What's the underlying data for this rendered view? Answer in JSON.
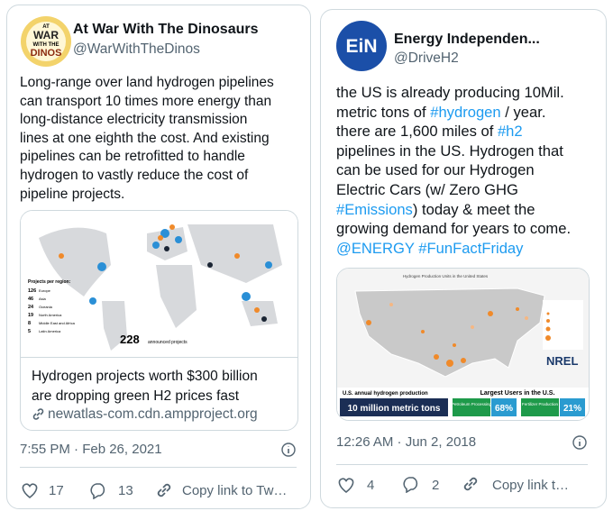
{
  "tweets": [
    {
      "avatar_text": [
        "AT",
        "WAR",
        "WITH THE",
        "DINOS"
      ],
      "name": "At War With The Dinosaurs",
      "handle": "@WarWithTheDinos",
      "body_lines": [
        [
          {
            "text": "Long-range over land hydrogen pipelines"
          }
        ],
        [
          {
            "text": "can transport 10 times more energy than"
          }
        ],
        [
          {
            "text": "long-distance electricity transmission"
          }
        ],
        [
          {
            "text": "lines at one eighth the cost. And existing"
          }
        ],
        [
          {
            "text": "pipelines can be retrofitted to handle"
          }
        ],
        [
          {
            "text": "hydrogen to vastly reduce the cost of"
          }
        ],
        [
          {
            "text": "pipeline projects."
          }
        ]
      ],
      "image": {
        "legend_title": "Projects per region:",
        "legend": [
          {
            "count": "126",
            "region": "Europe"
          },
          {
            "count": "46",
            "region": "Asia"
          },
          {
            "count": "24",
            "region": "Oceania"
          },
          {
            "count": "19",
            "region": "North America"
          },
          {
            "count": "8",
            "region": "Middle East and Africa"
          },
          {
            "count": "5",
            "region": "Latin America"
          }
        ],
        "total": "228",
        "total_label": "announced projects"
      },
      "card_title": [
        "Hydrogen projects worth $300 billion",
        "are dropping green H2 prices fast"
      ],
      "card_link": "newatlas-com.cdn.ampproject.org",
      "timestamp": "7:55 PM · Feb 26, 2021",
      "likes": "17",
      "replies": "13",
      "share": "Copy link to Tw…"
    },
    {
      "avatar_text": [
        "EiN"
      ],
      "name": "Energy Independen...",
      "handle": "@DriveH2",
      "body_lines": [
        [
          {
            "text": "the US is already producing 10Mil."
          }
        ],
        [
          {
            "text": "metric tons of "
          },
          {
            "text": "#hydrogen",
            "link": true
          },
          {
            "text": " / year."
          }
        ],
        [
          {
            "text": "there are 1,600 miles of "
          },
          {
            "text": "#h2",
            "link": true
          }
        ],
        [
          {
            "text": "pipelines in the US. Hydrogen that"
          }
        ],
        [
          {
            "text": "can be used for our Hydrogen"
          }
        ],
        [
          {
            "text": "Electric Cars (w/ Zero GHG"
          }
        ],
        [
          {
            "text": "#Emissions",
            "link": true
          },
          {
            "text": ") today & meet the"
          }
        ],
        [
          {
            "text": "growing demand for years to come."
          }
        ],
        [
          {
            "text": "@ENERGY",
            "link": true
          },
          {
            "text": " "
          },
          {
            "text": "#FunFactFriday",
            "link": true
          }
        ]
      ],
      "image": {
        "map_title": "Hydrogen Production Units in the United States",
        "brand": "NREL",
        "production_label": "U.S. annual hydrogen production",
        "production_value": "10 million metric tons",
        "users_label": "Largest Users in the U.S.",
        "users": [
          {
            "name": "Petroleum Processing",
            "share": "68%"
          },
          {
            "name": "Fertilizer Production",
            "share": "21%"
          }
        ]
      },
      "timestamp": "12:26 AM · Jun 2, 2018",
      "likes": "4",
      "replies": "2",
      "share": "Copy link t…"
    }
  ]
}
